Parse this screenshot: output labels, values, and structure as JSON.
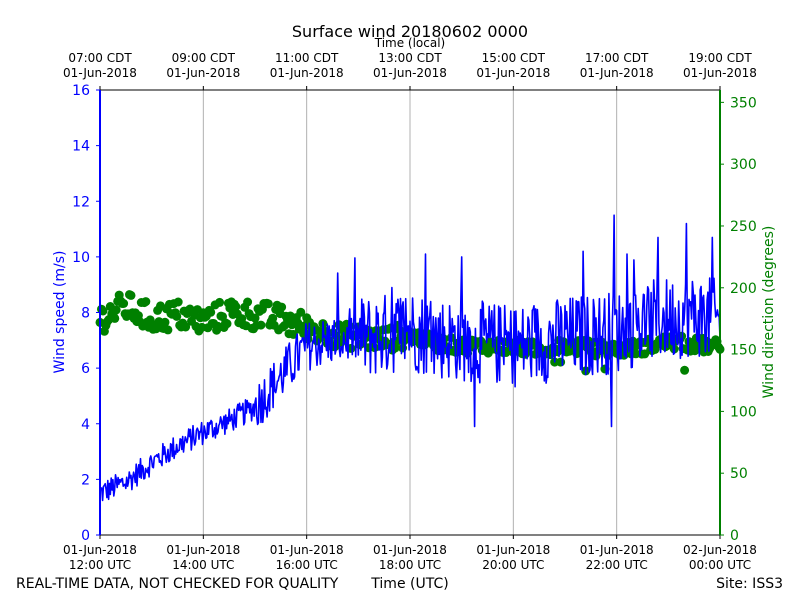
{
  "chart_data": {
    "type": "line",
    "title": "Surface wind 20180602 0000",
    "xlabel_bottom": "Time (UTC)",
    "xlabel_top": "Time (local)",
    "ylabel_left": "Wind speed (m/s)",
    "ylabel_right": "Wind direction (degrees)",
    "x_range_hours_utc": [
      12,
      24
    ],
    "ylim_left": [
      0,
      16
    ],
    "ylim_right": [
      0,
      360
    ],
    "grid": "vertical",
    "bottom_ticks": [
      {
        "hour": 12,
        "line1": "01-Jun-2018",
        "line2": "12:00 UTC"
      },
      {
        "hour": 14,
        "line1": "01-Jun-2018",
        "line2": "14:00 UTC"
      },
      {
        "hour": 16,
        "line1": "01-Jun-2018",
        "line2": "16:00 UTC"
      },
      {
        "hour": 18,
        "line1": "01-Jun-2018",
        "line2": "18:00 UTC"
      },
      {
        "hour": 20,
        "line1": "01-Jun-2018",
        "line2": "20:00 UTC"
      },
      {
        "hour": 22,
        "line1": "01-Jun-2018",
        "line2": "22:00 UTC"
      },
      {
        "hour": 24,
        "line1": "02-Jun-2018",
        "line2": "00:00 UTC"
      }
    ],
    "top_ticks": [
      {
        "hour": 12,
        "line1": "07:00 CDT",
        "line2": "01-Jun-2018"
      },
      {
        "hour": 14,
        "line1": "09:00 CDT",
        "line2": "01-Jun-2018"
      },
      {
        "hour": 16,
        "line1": "11:00 CDT",
        "line2": "01-Jun-2018"
      },
      {
        "hour": 18,
        "line1": "13:00 CDT",
        "line2": "01-Jun-2018"
      },
      {
        "hour": 20,
        "line1": "15:00 CDT",
        "line2": "01-Jun-2018"
      },
      {
        "hour": 22,
        "line1": "17:00 CDT",
        "line2": "01-Jun-2018"
      },
      {
        "hour": 24,
        "line1": "19:00 CDT",
        "line2": "01-Jun-2018"
      }
    ],
    "left_ticks": [
      "0",
      "2",
      "4",
      "6",
      "8",
      "10",
      "12",
      "14",
      "16"
    ],
    "right_ticks": [
      "0",
      "50",
      "100",
      "150",
      "200",
      "250",
      "300",
      "350"
    ],
    "series": [
      {
        "name": "Wind speed (m/s)",
        "axis": "left",
        "color": "#0000ff",
        "style": "line",
        "x_hours": [
          12.0,
          12.5,
          13.0,
          13.5,
          14.0,
          14.5,
          15.0,
          15.5,
          16.0,
          16.5,
          17.0,
          17.5,
          18.0,
          18.5,
          19.0,
          19.5,
          20.0,
          20.5,
          21.0,
          21.5,
          22.0,
          22.5,
          23.0,
          23.5,
          24.0
        ],
        "values": [
          1.5,
          1.9,
          2.6,
          3.2,
          3.7,
          4.1,
          4.6,
          5.7,
          6.8,
          7.0,
          7.1,
          7.2,
          7.4,
          7.1,
          7.0,
          6.9,
          6.8,
          6.9,
          7.1,
          7.2,
          7.3,
          7.6,
          7.8,
          7.9,
          7.7
        ],
        "peaks": [
          {
            "hour": 17.65,
            "value": 8.9
          },
          {
            "hour": 18.3,
            "value": 10.1
          },
          {
            "hour": 19.0,
            "value": 10.0
          },
          {
            "hour": 19.25,
            "value": 3.9
          },
          {
            "hour": 21.35,
            "value": 10.2
          },
          {
            "hour": 21.9,
            "value": 3.9
          },
          {
            "hour": 21.95,
            "value": 11.5
          },
          {
            "hour": 22.2,
            "value": 10.1
          },
          {
            "hour": 22.8,
            "value": 10.7
          },
          {
            "hour": 23.35,
            "value": 11.2
          },
          {
            "hour": 23.85,
            "value": 10.7
          }
        ]
      },
      {
        "name": "Wind direction (degrees)",
        "axis": "right",
        "color": "#008000",
        "style": "markers",
        "x_hours": [
          12.0,
          12.5,
          13.0,
          13.5,
          14.0,
          14.5,
          15.0,
          15.5,
          16.0,
          16.5,
          17.0,
          17.5,
          18.0,
          18.5,
          19.0,
          19.5,
          20.0,
          20.5,
          21.0,
          21.5,
          22.0,
          22.5,
          23.0,
          23.5,
          24.0
        ],
        "values": [
          175,
          185,
          175,
          178,
          172,
          180,
          178,
          174,
          168,
          162,
          160,
          158,
          162,
          155,
          153,
          153,
          152,
          150,
          153,
          151,
          150,
          152,
          156,
          154,
          152
        ]
      }
    ]
  },
  "footer": {
    "left": "REAL-TIME DATA, NOT CHECKED FOR QUALITY",
    "center": "Time (UTC)",
    "right": "Site: ISS3"
  }
}
